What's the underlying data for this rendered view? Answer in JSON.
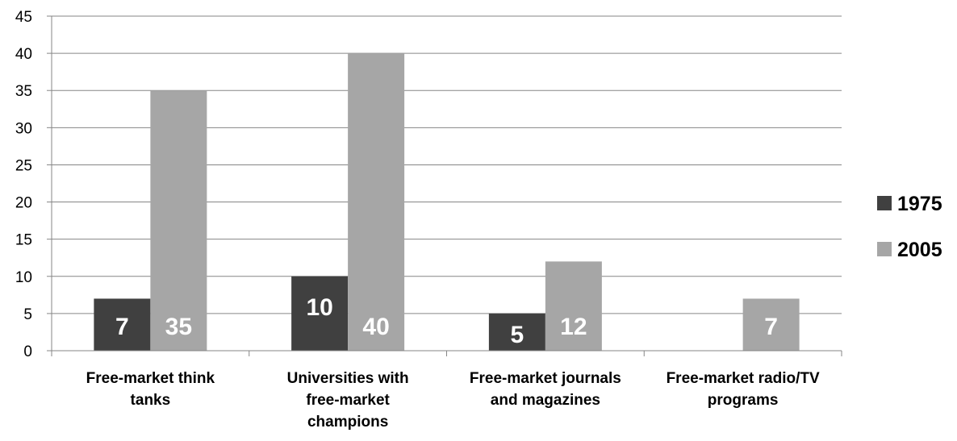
{
  "chart_data": {
    "type": "bar",
    "categories": [
      [
        "Free-market think",
        "tanks"
      ],
      [
        "Universities with",
        "free-market",
        "champions"
      ],
      [
        "Free-market journals",
        "and magazines"
      ],
      [
        "Free-market radio/TV",
        "programs"
      ]
    ],
    "series": [
      {
        "name": "1975",
        "color": "#404040",
        "values": [
          7,
          10,
          5,
          null
        ],
        "labels": [
          "7",
          "10",
          "5",
          ""
        ]
      },
      {
        "name": "2005",
        "color": "#a6a6a6",
        "values": [
          35,
          40,
          12,
          7
        ],
        "labels": [
          "35",
          "40",
          "12",
          "7"
        ]
      }
    ],
    "ylim": [
      0,
      45
    ],
    "yticks": [
      0,
      5,
      10,
      15,
      20,
      25,
      30,
      35,
      40,
      45
    ],
    "ytick_labels": [
      "0",
      "5",
      "10",
      "15",
      "20",
      "25",
      "30",
      "35",
      "40",
      "45"
    ],
    "grid": true,
    "legend_position": "right",
    "title": "",
    "xlabel": "",
    "ylabel": ""
  }
}
